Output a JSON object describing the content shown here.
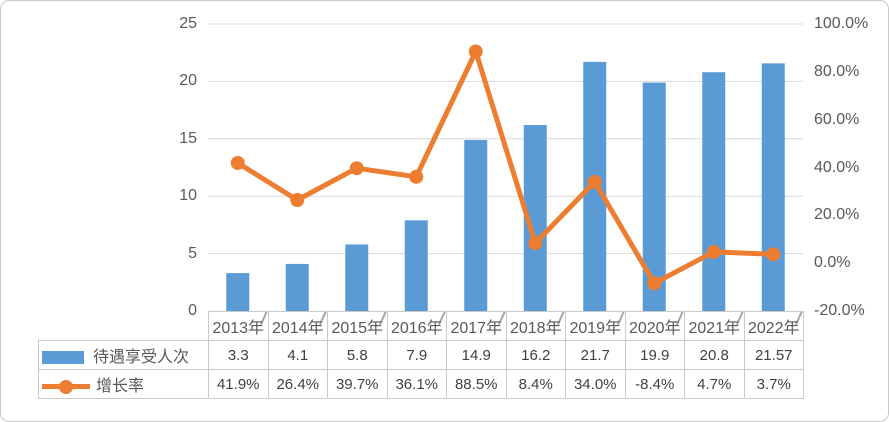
{
  "chart_data": {
    "type": "combo",
    "categories": [
      "2013年",
      "2014年",
      "2015年",
      "2016年",
      "2017年",
      "2018年",
      "2019年",
      "2020年",
      "2021年",
      "2022年"
    ],
    "series": [
      {
        "name": "待遇享受人次",
        "type": "bar",
        "axis": "left",
        "color": "#5b9bd5",
        "values": [
          3.3,
          4.1,
          5.8,
          7.9,
          14.9,
          16.2,
          21.7,
          19.9,
          20.8,
          21.57
        ],
        "value_labels": [
          "3.3",
          "4.1",
          "5.8",
          "7.9",
          "14.9",
          "16.2",
          "21.7",
          "19.9",
          "20.8",
          "21.57"
        ]
      },
      {
        "name": "增长率",
        "type": "line",
        "axis": "right",
        "color": "#ed7d31",
        "values": [
          41.9,
          26.4,
          39.7,
          36.1,
          88.5,
          8.4,
          34.0,
          -8.4,
          4.7,
          3.7
        ],
        "value_labels": [
          "41.9%",
          "26.4%",
          "39.7%",
          "36.1%",
          "88.5%",
          "8.4%",
          "34.0%",
          "-8.4%",
          "4.7%",
          "3.7%"
        ]
      }
    ],
    "left_axis": {
      "min": 0,
      "max": 25,
      "tick_labels": [
        "25",
        "20",
        "15",
        "10",
        "5",
        "0"
      ]
    },
    "right_axis": {
      "min": -20,
      "max": 100,
      "tick_labels": [
        "100.0%",
        "80.0%",
        "60.0%",
        "40.0%",
        "20.0%",
        "0.0%",
        "-20.0%"
      ]
    },
    "grid": true,
    "legend_position": "data-table-left",
    "colors": {
      "bar": "#5b9bd5",
      "line": "#ed7d31",
      "gridline": "#d9d9d9",
      "axis_text": "#595959",
      "table_border": "#c9c9c9",
      "table_text": "#404040",
      "category_tick": "#a6a6a6"
    }
  }
}
